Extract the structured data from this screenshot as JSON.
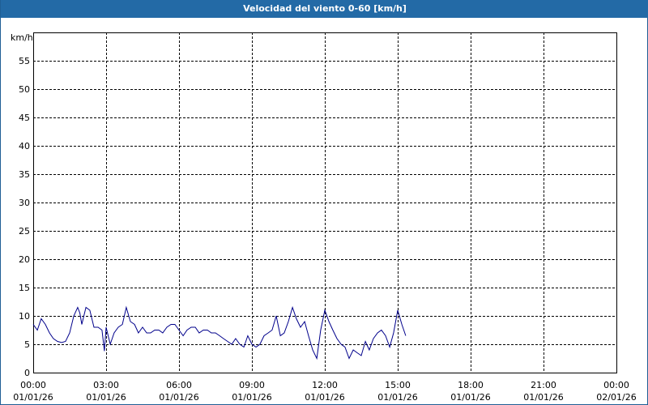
{
  "window": {
    "title": "Velocidad del viento 0-60 [km/h]"
  },
  "chart_data": {
    "type": "line",
    "title": "Velocidad del viento 0-60 [km/h]",
    "ylabel": "km/h",
    "xlabel": "",
    "ylim": [
      0,
      60
    ],
    "y_ticks": [
      "0",
      "5",
      "10",
      "15",
      "20",
      "25",
      "30",
      "35",
      "40",
      "45",
      "50",
      "55"
    ],
    "x_range_hours": [
      0,
      24
    ],
    "x_ticks": [
      {
        "time": "00:00",
        "date": "01/01/26"
      },
      {
        "time": "03:00",
        "date": "01/01/26"
      },
      {
        "time": "06:00",
        "date": "01/01/26"
      },
      {
        "time": "09:00",
        "date": "01/01/26"
      },
      {
        "time": "12:00",
        "date": "01/01/26"
      },
      {
        "time": "15:00",
        "date": "01/01/26"
      },
      {
        "time": "18:00",
        "date": "01/01/26"
      },
      {
        "time": "21:00",
        "date": "01/01/26"
      },
      {
        "time": "00:00",
        "date": "02/01/26"
      }
    ],
    "grid": true,
    "colors": {
      "line": "#00008b",
      "grid": "#000000",
      "title_bar": "#236aa6"
    },
    "series": [
      {
        "x": [
          0.0,
          0.17,
          0.33,
          0.5,
          0.67,
          0.83,
          1.0,
          1.17,
          1.33,
          1.5,
          1.67,
          1.83,
          1.92,
          2.0,
          2.17,
          2.33,
          2.5,
          2.67,
          2.83,
          2.93,
          3.0,
          3.17,
          3.33,
          3.5,
          3.67,
          3.83,
          4.0,
          4.17,
          4.33,
          4.5,
          4.67,
          4.83,
          5.0,
          5.17,
          5.33,
          5.5,
          5.67,
          5.83,
          6.0,
          6.17,
          6.33,
          6.5,
          6.67,
          6.83,
          7.0,
          7.17,
          7.33,
          7.5,
          7.67,
          7.83,
          8.0,
          8.17,
          8.33,
          8.5,
          8.67,
          8.83,
          9.0,
          9.17,
          9.33,
          9.5,
          9.67,
          9.83,
          10.0,
          10.17,
          10.33,
          10.5,
          10.67,
          10.83,
          11.0,
          11.17,
          11.33,
          11.5,
          11.67,
          11.83,
          12.0,
          12.17,
          12.33,
          12.5,
          12.67,
          12.83,
          13.0,
          13.17,
          13.33,
          13.5,
          13.67,
          13.83,
          14.0,
          14.17,
          14.33,
          14.5,
          14.67,
          14.83,
          15.0,
          15.17,
          15.33
        ],
        "y": [
          8.5,
          7.5,
          9.5,
          8.5,
          7,
          6,
          5.5,
          5.3,
          5.5,
          7,
          10,
          11.5,
          10.5,
          8.5,
          11.5,
          11,
          8,
          8,
          7.5,
          3.8,
          8,
          5,
          7,
          8,
          8.5,
          11.5,
          9,
          8.5,
          7,
          8,
          7,
          7,
          7.5,
          7.5,
          7,
          8,
          8.5,
          8.5,
          7.5,
          6.5,
          7.5,
          8,
          8,
          7,
          7.5,
          7.5,
          7,
          7,
          6.5,
          6,
          5.5,
          5,
          6,
          5,
          4.5,
          6.5,
          5,
          4.5,
          5,
          6.5,
          7,
          7.5,
          10,
          6.5,
          7,
          9,
          11.5,
          9.5,
          8,
          9,
          6.5,
          4,
          2.5,
          7.5,
          11,
          9,
          7.5,
          6,
          5,
          4.5,
          2.5,
          4,
          3.5,
          3,
          5.5,
          4,
          6,
          7,
          7.5,
          6.5,
          4.5,
          7,
          11,
          8.5,
          6.5
        ]
      }
    ]
  }
}
